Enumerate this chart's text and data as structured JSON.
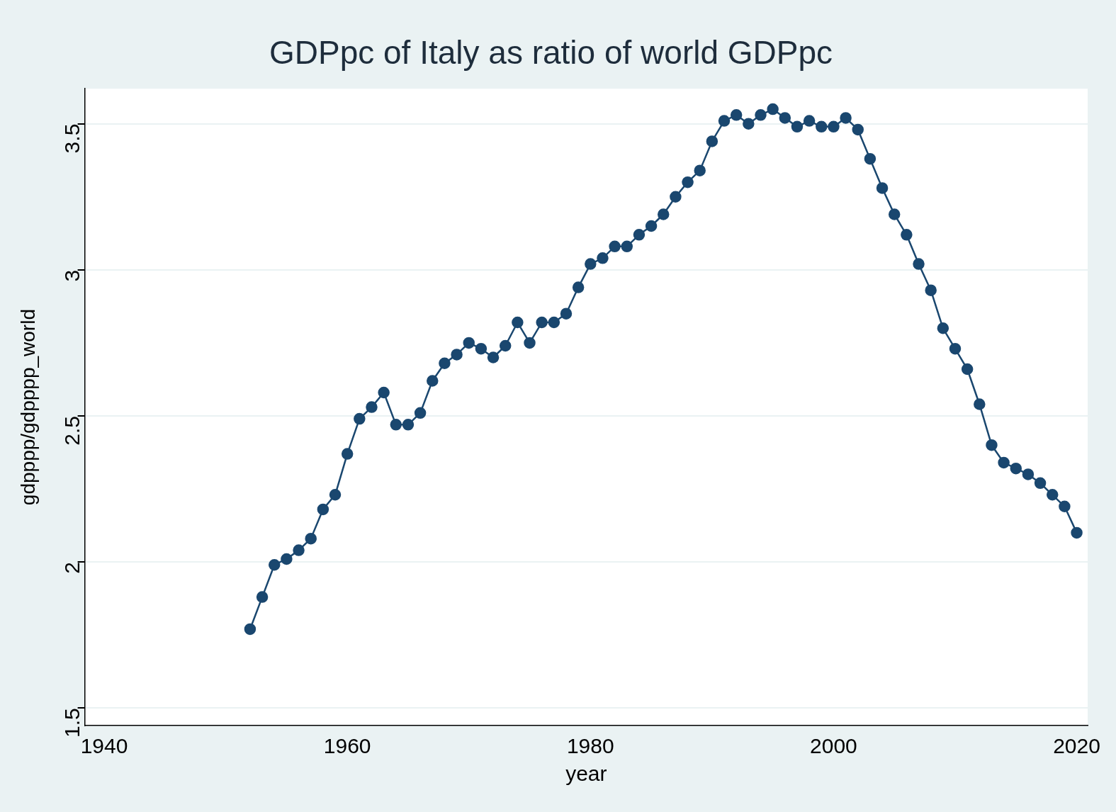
{
  "chart_data": {
    "type": "line",
    "title": "GDPpc of Italy as ratio of world GDPpc",
    "xlabel": "year",
    "ylabel": "gdpppp/gdpppp_world",
    "x": [
      1952,
      1953,
      1954,
      1955,
      1956,
      1957,
      1958,
      1959,
      1960,
      1961,
      1962,
      1963,
      1964,
      1965,
      1966,
      1967,
      1968,
      1969,
      1970,
      1971,
      1972,
      1973,
      1974,
      1975,
      1976,
      1977,
      1978,
      1979,
      1980,
      1981,
      1982,
      1983,
      1984,
      1985,
      1986,
      1987,
      1988,
      1989,
      1990,
      1991,
      1992,
      1993,
      1994,
      1995,
      1996,
      1997,
      1998,
      1999,
      2000,
      2001,
      2002,
      2003,
      2004,
      2005,
      2006,
      2007,
      2008,
      2009,
      2010,
      2011,
      2012,
      2013,
      2014,
      2015,
      2016,
      2017,
      2018,
      2019,
      2020
    ],
    "series": [
      {
        "color": "#1a476f",
        "values": [
          1.77,
          1.88,
          1.99,
          2.01,
          2.04,
          2.08,
          2.18,
          2.23,
          2.37,
          2.49,
          2.53,
          2.58,
          2.47,
          2.47,
          2.51,
          2.62,
          2.68,
          2.71,
          2.75,
          2.73,
          2.7,
          2.74,
          2.82,
          2.75,
          2.82,
          2.82,
          2.85,
          2.94,
          3.02,
          3.04,
          3.08,
          3.08,
          3.12,
          3.15,
          3.19,
          3.25,
          3.3,
          3.34,
          3.44,
          3.51,
          3.53,
          3.5,
          3.53,
          3.55,
          3.52,
          3.49,
          3.51,
          3.49,
          3.49,
          3.52,
          3.48,
          3.38,
          3.28,
          3.19,
          3.12,
          3.02,
          2.93,
          2.8,
          2.73,
          2.66,
          2.54,
          2.4,
          2.34,
          2.32,
          2.3,
          2.27,
          2.23,
          2.19,
          2.1
        ]
      }
    ],
    "xlim": [
      1938.4,
      2020.9
    ],
    "xticks": [
      1940,
      1960,
      1980,
      2000,
      2020
    ],
    "ylim": [
      1.44,
      3.62
    ],
    "yticks": [
      1.5,
      2,
      2.5,
      3,
      3.5
    ],
    "grid": "y",
    "marker": "circle",
    "line_style": "solid",
    "legend": false
  }
}
